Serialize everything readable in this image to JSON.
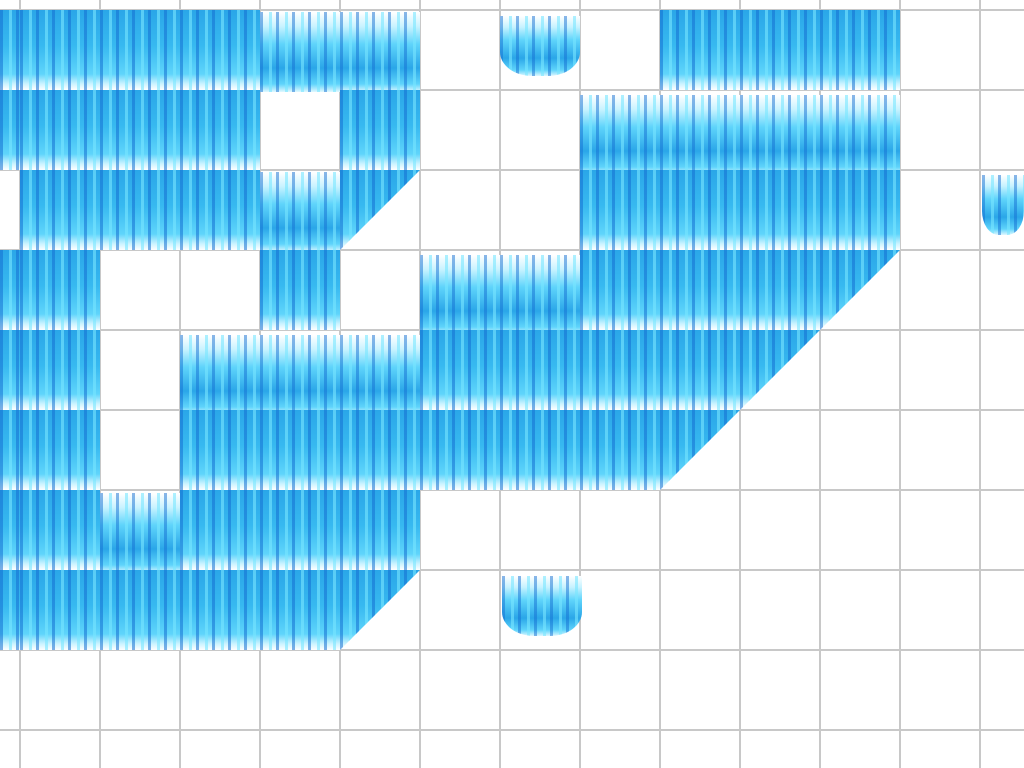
{
  "scene": {
    "tile_type": "waterfall",
    "grid_visible": true,
    "colors": {
      "water_dark": "#1a6fd4",
      "water_mid": "#2aa6e8",
      "water_light": "#5fd4fb",
      "foam": "#ffffff",
      "grid": "#c8c8c8",
      "background": "#ffffff"
    }
  }
}
